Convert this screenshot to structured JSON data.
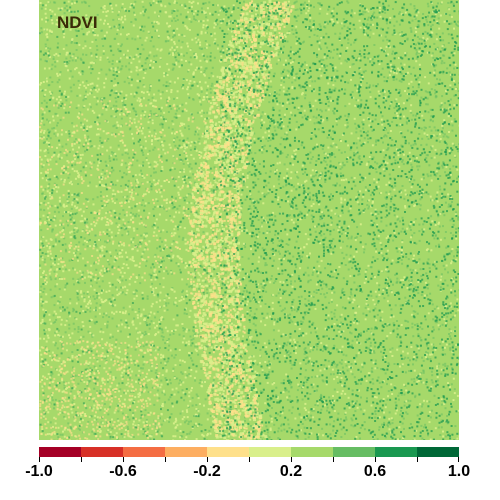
{
  "map": {
    "title": "NDVI",
    "layer": "NDVI raster",
    "value_range": [
      -1.0,
      1.0
    ],
    "dominant_value_range": [
      0.2,
      0.6
    ],
    "background_color": "#a6d96a",
    "patch_colors": {
      "light": "#d9ef8b",
      "pale": "#fee08b",
      "mid": "#66bd63",
      "dark": "#1a9850"
    }
  },
  "legend": {
    "colors": [
      "#a50026",
      "#d73027",
      "#f46d43",
      "#fdae61",
      "#fee08b",
      "#d9ef8b",
      "#a6d96a",
      "#66bd63",
      "#1a9850",
      "#006837"
    ],
    "breaks": [
      -1.0,
      -0.8,
      -0.6,
      -0.4,
      -0.2,
      0.0,
      0.2,
      0.4,
      0.6,
      0.8,
      1.0
    ],
    "tick_labels": [
      "-1.0",
      "-0.6",
      "-0.2",
      "0.2",
      "0.6",
      "1.0"
    ]
  }
}
